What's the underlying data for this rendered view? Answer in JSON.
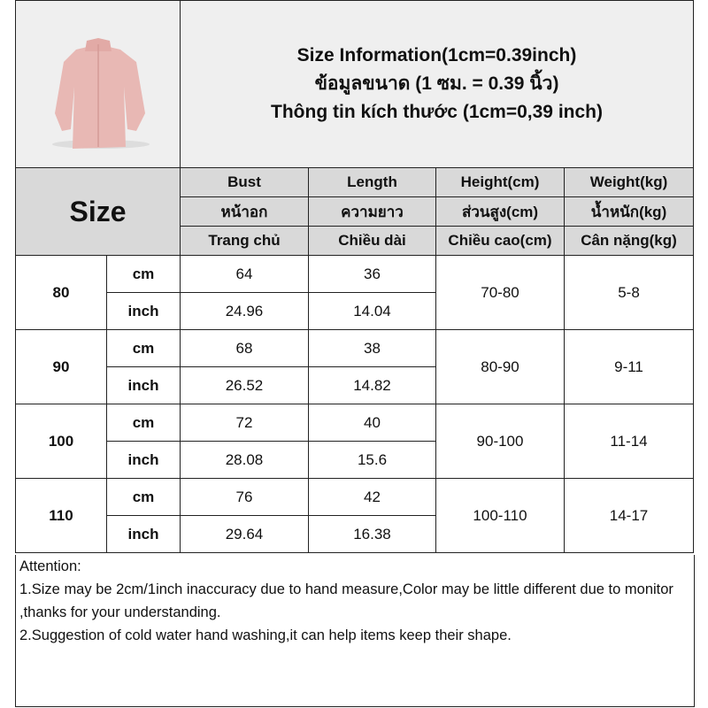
{
  "title": {
    "line1": "Size Information(1cm=0.39inch)",
    "line2": "ข้อมูลขนาด (1 ซม. = 0.39 นิ้ว)",
    "line3": "Thông tin kích thước (1cm=0,39 inch)"
  },
  "size_label": "Size",
  "headers": [
    [
      "Bust",
      "Length",
      "Height(cm)",
      "Weight(kg)"
    ],
    [
      "หน้าอก",
      "ความยาว",
      "ส่วนสูง(cm)",
      "น้ำหนัก(kg)"
    ],
    [
      "Trang chủ",
      "Chiều dài",
      "Chiều cao(cm)",
      "Cân nặng(kg)"
    ]
  ],
  "rows": [
    {
      "size": "80",
      "cm_label": "cm",
      "inch_label": "inch",
      "bust_cm": "64",
      "length_cm": "36",
      "bust_in": "24.96",
      "length_in": "14.04",
      "height": "70-80",
      "weight": "5-8"
    },
    {
      "size": "90",
      "cm_label": "cm",
      "inch_label": "inch",
      "bust_cm": "68",
      "length_cm": "38",
      "bust_in": "26.52",
      "length_in": "14.82",
      "height": "80-90",
      "weight": "9-11"
    },
    {
      "size": "100",
      "cm_label": "cm",
      "inch_label": "inch",
      "bust_cm": "72",
      "length_cm": "40",
      "bust_in": "28.08",
      "length_in": "15.6",
      "height": "90-100",
      "weight": "11-14"
    },
    {
      "size": "110",
      "cm_label": "cm",
      "inch_label": "inch",
      "bust_cm": "76",
      "length_cm": "42",
      "bust_in": "29.64",
      "length_in": "16.38",
      "height": "100-110",
      "weight": "14-17"
    }
  ],
  "attention": {
    "heading": "Attention:",
    "line1": "1.Size may be 2cm/1inch inaccuracy due to hand measure,Color may be little different due to monitor ,thanks for your understanding.",
    "line2": "2.Suggestion of cold water hand washing,it can help items keep their shape."
  },
  "colors": {
    "header_bg": "#d9d9d9",
    "top_bg": "#efefef",
    "jacket": "#e8b8b4"
  },
  "image": {
    "icon": "pink-fleece-jacket"
  }
}
